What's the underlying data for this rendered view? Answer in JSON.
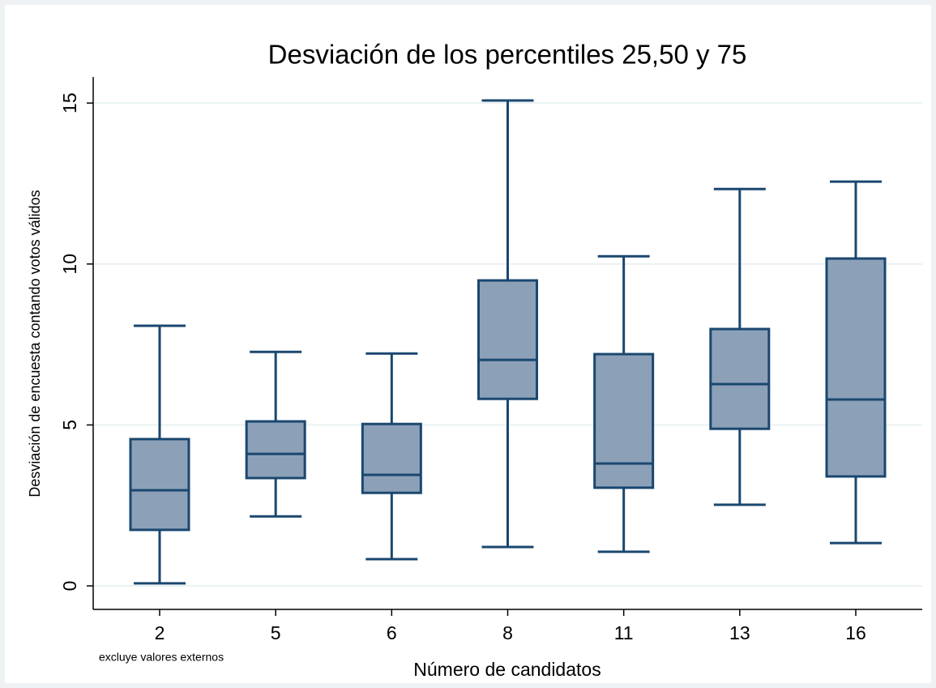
{
  "chart_data": {
    "type": "box",
    "title": "Desviación de los percentiles 25,50 y 75",
    "x_label": "Número de candidatos",
    "y_label": "Desviación de encuesta contando votos válidos",
    "note": "excluye valores externos",
    "categories": [
      "2",
      "5",
      "6",
      "8",
      "11",
      "13",
      "16"
    ],
    "boxes": [
      {
        "low": 0.08,
        "q1": 1.74,
        "median": 2.97,
        "q3": 4.56,
        "high": 8.08
      },
      {
        "low": 2.16,
        "q1": 3.35,
        "median": 4.1,
        "q3": 5.11,
        "high": 7.27
      },
      {
        "low": 0.83,
        "q1": 2.89,
        "median": 3.45,
        "q3": 5.03,
        "high": 7.22
      },
      {
        "low": 1.21,
        "q1": 5.81,
        "median": 7.02,
        "q3": 9.49,
        "high": 15.08
      },
      {
        "low": 1.06,
        "q1": 3.05,
        "median": 3.8,
        "q3": 7.2,
        "high": 10.24
      },
      {
        "low": 2.52,
        "q1": 4.88,
        "median": 6.27,
        "q3": 7.98,
        "high": 12.33
      },
      {
        "low": 1.33,
        "q1": 3.4,
        "median": 5.79,
        "q3": 10.17,
        "high": 12.56
      }
    ],
    "color": "#8ca1b8",
    "edge_color": "#1a476f",
    "ylim": [
      -0.73,
      15.81
    ],
    "yticks": [
      0,
      5,
      10,
      15
    ],
    "grid": true
  }
}
